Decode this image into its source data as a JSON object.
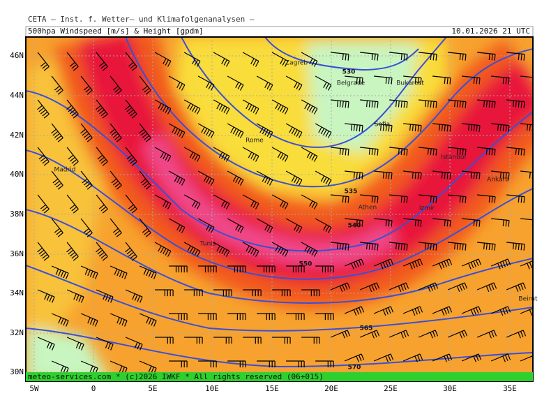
{
  "header": "CETA — Inst. f. Wetter— und Klimafolgenanalysen —",
  "title": "500hpa Windspeed [m/s] & Height [gpdm]",
  "timestamp": "10.01.2026 21 UTC",
  "lat_labels": [
    "46N",
    "44N",
    "42N",
    "40N",
    "38N",
    "36N",
    "34N",
    "32N",
    "30N"
  ],
  "lon_labels": [
    "5W",
    "0",
    "5E",
    "10E",
    "15E",
    "20E",
    "25E",
    "30E",
    "35E"
  ],
  "cities": [
    "Zagreb",
    "Belgrade",
    "Bukarest",
    "Sofia",
    "Rome",
    "Madrid",
    "Istanbul",
    "Ankara",
    "Athen",
    "Izmir",
    "Tunis",
    "Beirut"
  ],
  "contour_labels": [
    "530",
    "535",
    "540",
    "550",
    "565",
    "570"
  ],
  "footer": "meteo-services.com * (c)2026 IWKF * All rights reserved (06+015)"
}
